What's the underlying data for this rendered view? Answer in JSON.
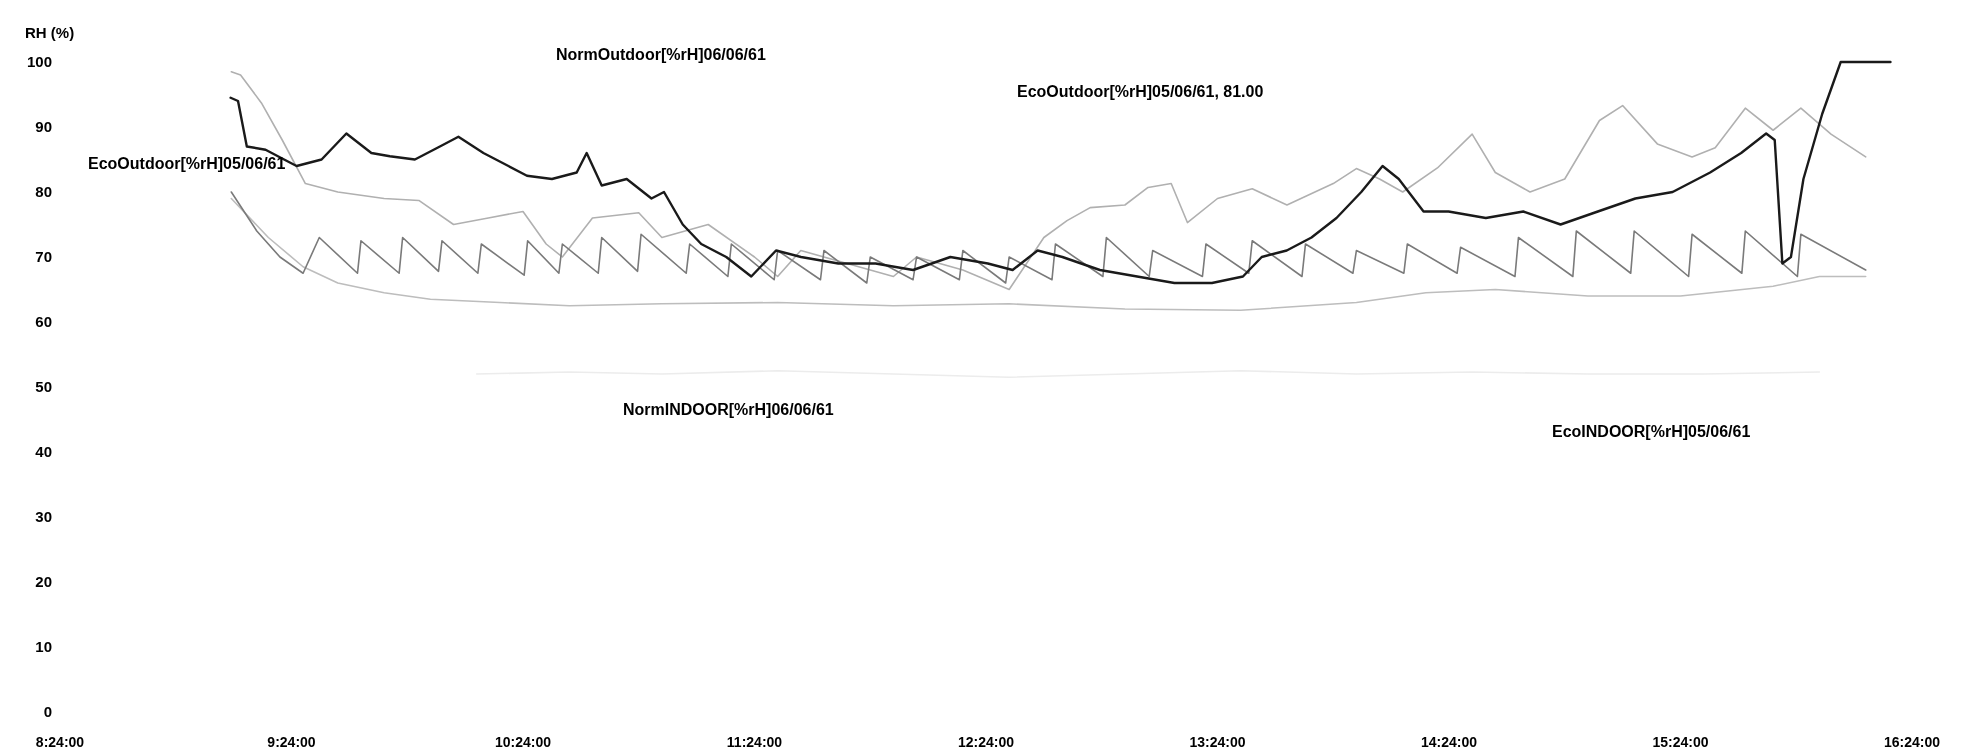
{
  "chart_data": {
    "type": "line",
    "ylabel": "RH (%)",
    "xlim": [
      8.4,
      16.4
    ],
    "ylim": [
      0,
      100
    ],
    "xticks": [
      {
        "value": 8.4,
        "label": "8:24:00"
      },
      {
        "value": 9.4,
        "label": "9:24:00"
      },
      {
        "value": 10.4,
        "label": "10:24:00"
      },
      {
        "value": 11.4,
        "label": "11:24:00"
      },
      {
        "value": 12.4,
        "label": "12:24:00"
      },
      {
        "value": 13.4,
        "label": "13:24:00"
      },
      {
        "value": 14.4,
        "label": "14:24:00"
      },
      {
        "value": 15.4,
        "label": "15:24:00"
      },
      {
        "value": 16.4,
        "label": "16:24:00"
      }
    ],
    "yticks": [
      0,
      10,
      20,
      30,
      40,
      50,
      60,
      70,
      80,
      90,
      100
    ],
    "marker": "none",
    "line_style": "solid",
    "annotations": [
      "NormOutdoor[%rH]06/06/61",
      "EcoOutdoor[%rH]05/06/61, 81.00",
      "EcoOutdoor[%rH]05/06/61",
      "NormINDOOR[%rH]06/06/61",
      "EcoINDOOR[%rH]05/06/61"
    ],
    "series": [
      {
        "color": "#ececec",
        "x": [
          10.2,
          10.6,
          11.0,
          11.5,
          12.0,
          12.5,
          13.0,
          13.5,
          14.0,
          14.5,
          15.0,
          15.5,
          16.0
        ],
        "values": [
          52,
          52.3,
          52,
          52.5,
          52,
          51.5,
          52,
          52.5,
          52,
          52.3,
          52,
          52,
          52.3
        ]
      },
      {
        "color": "#bdbdbd",
        "x": [
          9.14,
          9.3,
          9.45,
          9.6,
          9.8,
          10.0,
          10.3,
          10.6,
          11.0,
          11.5,
          12.0,
          12.5,
          13.0,
          13.5,
          14.0,
          14.3,
          14.6,
          15.0,
          15.4,
          15.8,
          16.0,
          16.2
        ],
        "values": [
          79,
          73,
          68.5,
          66,
          64.5,
          63.5,
          63,
          62.5,
          62.8,
          63,
          62.5,
          62.8,
          62,
          61.8,
          63,
          64.5,
          65,
          64,
          64,
          65.5,
          67,
          67
        ]
      },
      {
        "color": "#b0b0b0",
        "x": [
          9.14,
          9.18,
          9.27,
          9.36,
          9.46,
          9.6,
          9.8,
          9.95,
          10.1,
          10.25,
          10.4,
          10.5,
          10.57,
          10.7,
          10.9,
          11.0,
          11.2,
          11.4,
          11.5,
          11.6,
          11.8,
          12.0,
          12.1,
          12.3,
          12.5,
          12.65,
          12.75,
          12.85,
          13.0,
          13.1,
          13.2,
          13.27,
          13.4,
          13.55,
          13.7,
          13.9,
          14.0,
          14.1,
          14.2,
          14.35,
          14.5,
          14.6,
          14.75,
          14.9,
          15.0,
          15.05,
          15.15,
          15.3,
          15.45,
          15.55,
          15.68,
          15.8,
          15.92,
          16.05,
          16.2
        ],
        "values": [
          98.5,
          98,
          93.7,
          88,
          81.3,
          80,
          79,
          78.7,
          75,
          76,
          77,
          72,
          70,
          76,
          76.8,
          73,
          75,
          70,
          67,
          71,
          69,
          67,
          70,
          68,
          65,
          73,
          75.6,
          77.6,
          78,
          80.7,
          81.3,
          75.3,
          79,
          80.5,
          78,
          81.3,
          83.6,
          82,
          80,
          83.7,
          88.9,
          83,
          80,
          82,
          88,
          91,
          93.3,
          87.4,
          85.4,
          86.8,
          92.9,
          89.5,
          92.9,
          88.9,
          85.4
        ]
      },
      {
        "color": "#7a7a7a",
        "x": [
          9.14,
          9.25,
          9.35,
          9.45,
          9.52,
          9.685,
          9.7,
          9.865,
          9.88,
          10.035,
          10.05,
          10.205,
          10.22,
          10.405,
          10.42,
          10.555,
          10.57,
          10.725,
          10.74,
          10.895,
          10.91,
          11.105,
          11.12,
          11.285,
          11.3,
          11.485,
          11.5,
          11.685,
          11.7,
          11.885,
          11.9,
          12.085,
          12.1,
          12.285,
          12.3,
          12.485,
          12.5,
          12.685,
          12.7,
          12.905,
          12.92,
          13.105,
          13.12,
          13.335,
          13.35,
          13.535,
          13.55,
          13.765,
          13.78,
          13.985,
          14.0,
          14.205,
          14.22,
          14.435,
          14.45,
          14.685,
          14.7,
          14.935,
          14.95,
          15.185,
          15.2,
          15.435,
          15.45,
          15.665,
          15.68,
          15.905,
          15.92,
          16.2
        ],
        "values": [
          80,
          74,
          70,
          67.5,
          73,
          67.5,
          72.5,
          67.5,
          73,
          67.8,
          72.5,
          67.5,
          72,
          67.2,
          72.5,
          67.5,
          72,
          67.5,
          73,
          67.8,
          73.5,
          67.5,
          72,
          67,
          72,
          66.5,
          71,
          66.5,
          71,
          66,
          70,
          66.5,
          70,
          66.5,
          71,
          66,
          70,
          66.5,
          72,
          67,
          73,
          67,
          71,
          67,
          72,
          67.5,
          72.5,
          67,
          72,
          67.5,
          71,
          67.5,
          72,
          67.5,
          71.5,
          67,
          73,
          67,
          74,
          67.5,
          74,
          67,
          73.5,
          67.5,
          74,
          67,
          73.5,
          68
        ]
      },
      {
        "color": "#1a1a1a",
        "x": [
          9.137,
          9.169,
          9.207,
          9.288,
          9.368,
          9.422,
          9.53,
          9.637,
          9.745,
          9.825,
          9.933,
          10.041,
          10.121,
          10.229,
          10.337,
          10.417,
          10.525,
          10.632,
          10.675,
          10.74,
          10.848,
          10.955,
          11.009,
          11.09,
          11.17,
          11.278,
          11.386,
          11.493,
          11.601,
          11.762,
          11.923,
          12.085,
          12.246,
          12.408,
          12.515,
          12.623,
          12.73,
          12.892,
          13.053,
          13.214,
          13.376,
          13.51,
          13.591,
          13.699,
          13.806,
          13.914,
          14.021,
          14.113,
          14.183,
          14.29,
          14.398,
          14.559,
          14.721,
          14.882,
          15.043,
          15.205,
          15.366,
          15.528,
          15.662,
          15.77,
          15.807,
          15.84,
          15.877,
          15.931,
          16.012,
          16.092,
          16.307
        ],
        "values": [
          94.5,
          94,
          87,
          86.5,
          85,
          84,
          85,
          89,
          86,
          85.5,
          85,
          87,
          88.5,
          86,
          84,
          82.5,
          82,
          83,
          86,
          81,
          82,
          79,
          80,
          75,
          72,
          70,
          67,
          71,
          70,
          69,
          69,
          68,
          70,
          69,
          68,
          71,
          70,
          68,
          67,
          66,
          66,
          67,
          70,
          71,
          73,
          76,
          80,
          84,
          82,
          77,
          77,
          76,
          77,
          75,
          77,
          79,
          80,
          83,
          86,
          89,
          88,
          69,
          70,
          82,
          92,
          100,
          100
        ]
      }
    ]
  }
}
